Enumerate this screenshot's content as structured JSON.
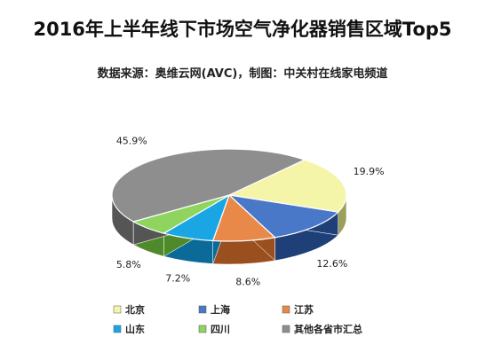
{
  "title": "2016年上半年线下市场空气净化器销售区域Top5",
  "subtitle": "数据来源：奥维云网(AVC)，制图：中关村在线家电频道",
  "chart_data": {
    "type": "pie",
    "title": "2016年上半年线下市场空气净化器销售区域Top5",
    "subtitle": "数据来源：奥维云网(AVC)，制图：中关村在线家电频道",
    "legend_position": "bottom",
    "slices": [
      {
        "name": "北京",
        "value": 19.9,
        "label": "19.9%",
        "color": "#f4f5a9",
        "side": "#9aa05a"
      },
      {
        "name": "上海",
        "value": 12.6,
        "label": "12.6%",
        "color": "#4a78c8",
        "side": "#1f3f78"
      },
      {
        "name": "江苏",
        "value": 8.6,
        "label": "8.6%",
        "color": "#e8894a",
        "side": "#9a4f1f"
      },
      {
        "name": "山东",
        "value": 7.2,
        "label": "7.2%",
        "color": "#1aa6e4",
        "side": "#0b6a98"
      },
      {
        "name": "四川",
        "value": 5.8,
        "label": "5.8%",
        "color": "#8fd45e",
        "side": "#4f8a2a"
      },
      {
        "name": "其他各省市汇总",
        "value": 45.9,
        "label": "45.9%",
        "color": "#8e8e8e",
        "side": "#555555"
      }
    ]
  }
}
